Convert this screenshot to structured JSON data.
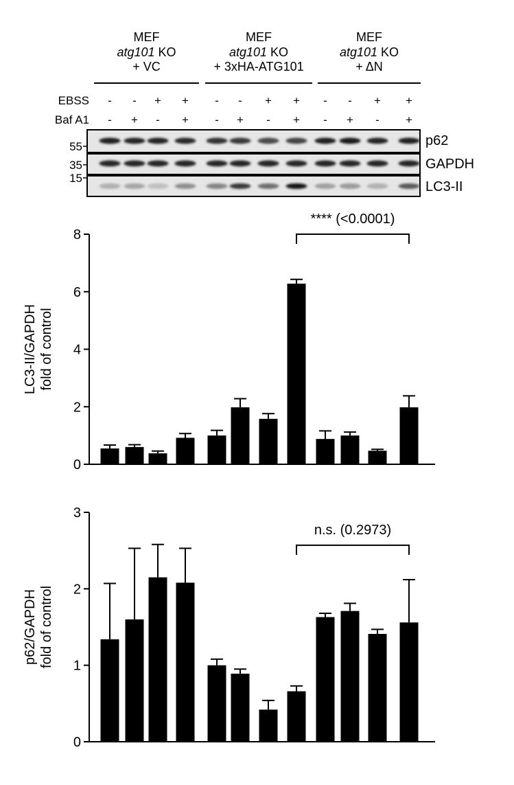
{
  "groups": [
    {
      "line1": "MEF",
      "line2_italic": "atg101",
      "line2_rest": " KO",
      "line3": "+ VC"
    },
    {
      "line1": "MEF",
      "line2_italic": "atg101",
      "line2_rest": " KO",
      "line3": "+ 3xHA-ATG101"
    },
    {
      "line1": "MEF",
      "line2_italic": "atg101",
      "line2_rest": " KO",
      "line3": "+ ΔN"
    }
  ],
  "conditions": {
    "ebss_label": "EBSS",
    "baf_label": "Baf A1",
    "ebss": [
      "-",
      "-",
      "+",
      "+",
      "-",
      "-",
      "+",
      "+",
      "-",
      "-",
      "+",
      "+"
    ],
    "baf": [
      "-",
      "+",
      "-",
      "+",
      "-",
      "+",
      "-",
      "+",
      "-",
      "+",
      "-",
      "+"
    ]
  },
  "blot": {
    "rows": [
      {
        "label": "p62",
        "marker": "55",
        "intensity": [
          0.92,
          0.9,
          0.9,
          0.88,
          0.82,
          0.8,
          0.72,
          0.75,
          0.92,
          0.93,
          0.9,
          0.92
        ]
      },
      {
        "label": "GAPDH",
        "marker": "35",
        "intensity": [
          0.9,
          0.9,
          0.9,
          0.9,
          0.9,
          0.9,
          0.9,
          0.9,
          0.9,
          0.9,
          0.9,
          0.9
        ]
      },
      {
        "label": "LC3-II",
        "marker": "15",
        "intensity": [
          0.25,
          0.3,
          0.18,
          0.4,
          0.45,
          0.8,
          0.55,
          0.98,
          0.32,
          0.35,
          0.25,
          0.65
        ]
      }
    ]
  },
  "chart_data": [
    {
      "type": "bar",
      "ylabel_line1": "LC3-II/GAPDH",
      "ylabel_line2": "fold of control",
      "ylim": [
        0,
        8
      ],
      "yticks": [
        0,
        2,
        4,
        6,
        8
      ],
      "values": [
        0.55,
        0.6,
        0.38,
        0.92,
        1.0,
        1.98,
        1.58,
        6.28,
        0.88,
        1.0,
        0.47,
        1.98
      ],
      "errors": [
        0.12,
        0.08,
        0.08,
        0.15,
        0.18,
        0.3,
        0.18,
        0.15,
        0.28,
        0.12,
        0.05,
        0.4
      ],
      "annotation": {
        "text": "**** (<0.0001)",
        "from_bar": 7,
        "to_bar": 11,
        "y": 8
      }
    },
    {
      "type": "bar",
      "ylabel_line1": "p62/GAPDH",
      "ylabel_line2": "fold of control",
      "ylim": [
        0,
        3
      ],
      "yticks": [
        0,
        1,
        2,
        3
      ],
      "values": [
        1.34,
        1.6,
        2.15,
        2.08,
        1.0,
        0.89,
        0.42,
        0.66,
        1.63,
        1.71,
        1.41,
        1.56
      ],
      "errors": [
        0.73,
        0.93,
        0.43,
        0.45,
        0.08,
        0.06,
        0.12,
        0.07,
        0.05,
        0.1,
        0.06,
        0.56
      ],
      "annotation": {
        "text": "n.s. (0.2973)",
        "from_bar": 7,
        "to_bar": 11,
        "y": 2.57
      }
    }
  ]
}
